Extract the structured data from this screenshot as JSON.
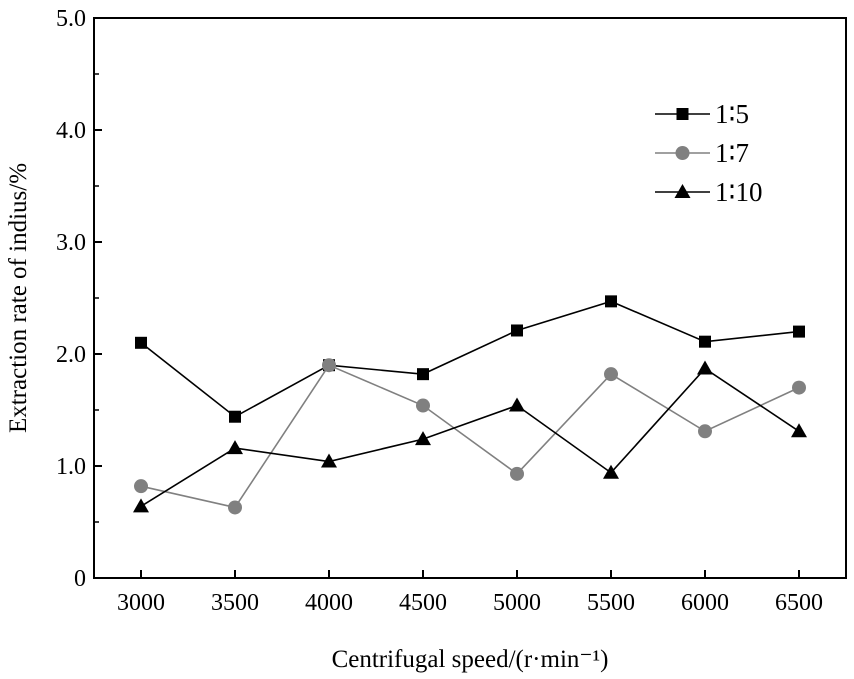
{
  "chart_data": {
    "type": "line",
    "xlabel": "Centrifugal speed/(r·min⁻¹)",
    "ylabel": "Extraction rate of indius/%",
    "x": [
      3000,
      3500,
      4000,
      4500,
      5000,
      5500,
      6000,
      6500
    ],
    "x_tick_labels": [
      "3000",
      "3500",
      "4000",
      "4500",
      "5000",
      "5500",
      "6000",
      "6500"
    ],
    "xlim": [
      2750,
      6750
    ],
    "ylim": [
      0,
      5.0
    ],
    "y_ticks": [
      0,
      1.0,
      2.0,
      3.0,
      4.0,
      5.0
    ],
    "y_tick_labels": [
      "0",
      "1.0",
      "2.0",
      "3.0",
      "4.0",
      "5.0"
    ],
    "grid": false,
    "legend_position": "top-right",
    "series": [
      {
        "name": "1∶5",
        "marker": "square",
        "color": "#000000",
        "values": [
          2.1,
          1.44,
          1.9,
          1.82,
          2.21,
          2.47,
          2.11,
          2.2
        ]
      },
      {
        "name": "1∶7",
        "marker": "circle",
        "color": "#808080",
        "values": [
          0.82,
          0.63,
          1.9,
          1.54,
          0.93,
          1.82,
          1.31,
          1.7
        ]
      },
      {
        "name": "1∶10",
        "marker": "triangle",
        "color": "#000000",
        "values": [
          0.64,
          1.16,
          1.04,
          1.24,
          1.54,
          0.94,
          1.87,
          1.31
        ]
      }
    ]
  }
}
